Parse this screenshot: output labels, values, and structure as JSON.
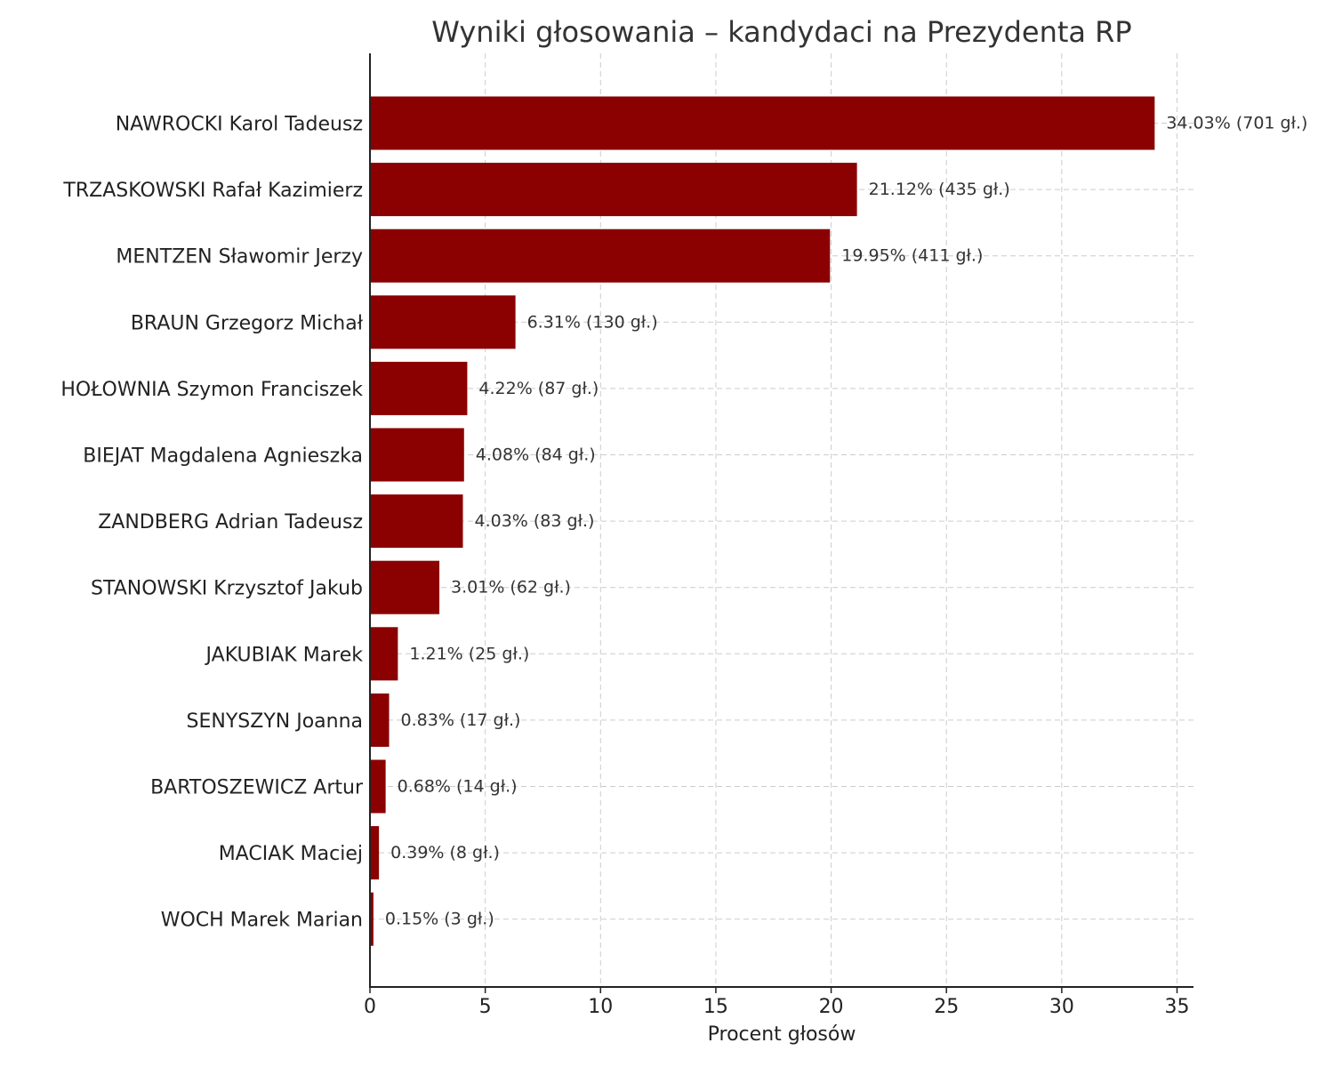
{
  "chart_data": {
    "type": "bar",
    "orientation": "horizontal",
    "title": "Wyniki głosowania – kandydaci na Prezydenta RP",
    "xlabel": "Procent głosów",
    "ylabel": "",
    "xlim": [
      0,
      35.7
    ],
    "xticks": [
      0,
      5,
      10,
      15,
      20,
      25,
      30,
      35
    ],
    "grid": true,
    "bar_color": "#8b0000",
    "categories": [
      "NAWROCKI Karol Tadeusz",
      "TRZASKOWSKI Rafał Kazimierz",
      "MENTZEN Sławomir Jerzy",
      "BRAUN Grzegorz Michał",
      "HOŁOWNIA Szymon Franciszek",
      "BIEJAT Magdalena Agnieszka",
      "ZANDBERG Adrian Tadeusz",
      "STANOWSKI Krzysztof Jakub",
      "JAKUBIAK Marek",
      "SENYSZYN Joanna",
      "BARTOSZEWICZ Artur",
      "MACIAK Maciej",
      "WOCH Marek Marian"
    ],
    "values": [
      34.03,
      21.12,
      19.95,
      6.31,
      4.22,
      4.08,
      4.03,
      3.01,
      1.21,
      0.83,
      0.68,
      0.39,
      0.15
    ],
    "data_labels": [
      "34.03% (701 gł.)",
      "21.12% (435 gł.)",
      "19.95% (411 gł.)",
      "6.31% (130 gł.)",
      "4.22% (87 gł.)",
      "4.08% (84 gł.)",
      "4.03% (83 gł.)",
      "3.01% (62 gł.)",
      "1.21% (25 gł.)",
      "0.83% (17 gł.)",
      "0.68% (14 gł.)",
      "0.39% (8 gł.)",
      "0.15% (3 gł.)"
    ]
  }
}
